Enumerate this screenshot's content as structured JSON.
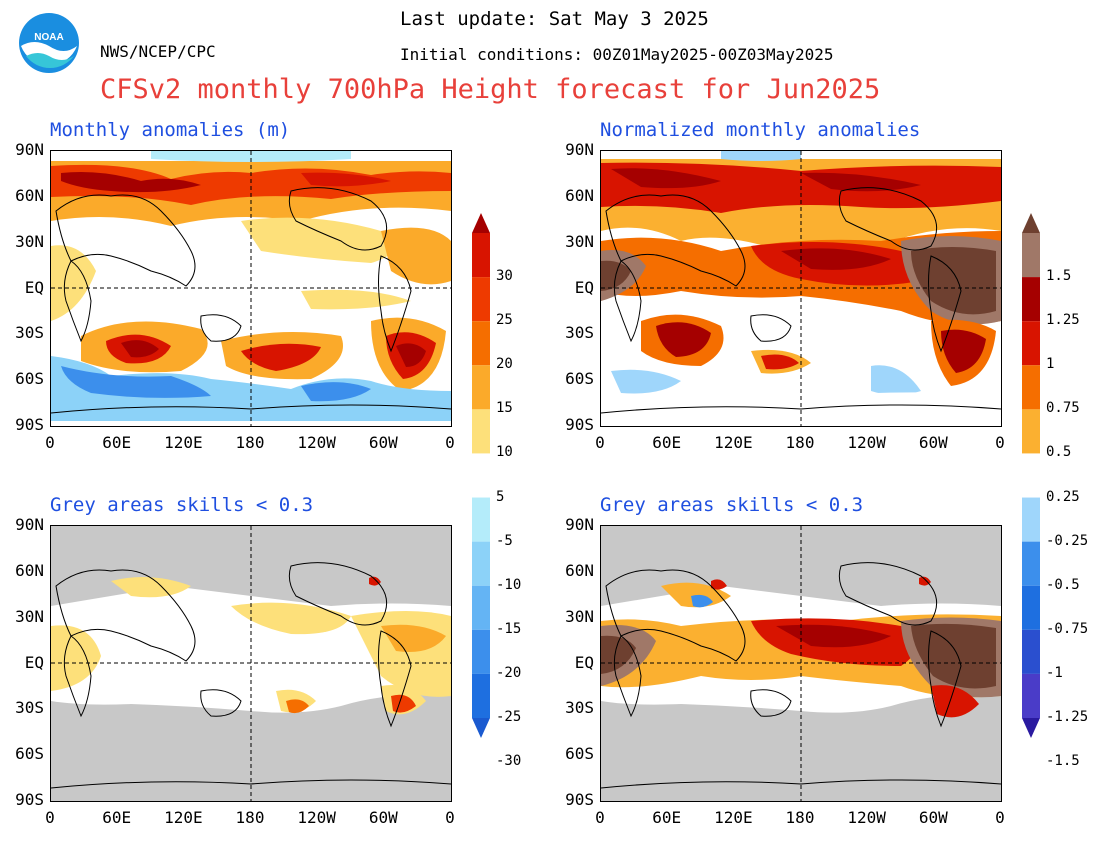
{
  "header": {
    "org": "NWS/NCEP/CPC",
    "last_update": "Last update: Sat May 3 2025",
    "initial_conditions": "Initial conditions: 00Z01May2025-00Z03May2025",
    "title": "CFSv2 monthly 700hPa Height forecast for Jun2025",
    "logo_text": "NOAA"
  },
  "panels": [
    {
      "id": "tl",
      "subtitle": "Monthly anomalies (m)"
    },
    {
      "id": "tr",
      "subtitle": "Normalized monthly anomalies"
    },
    {
      "id": "bl",
      "subtitle": "Grey areas skills < 0.3"
    },
    {
      "id": "br",
      "subtitle": "Grey areas skills < 0.3"
    }
  ],
  "axes": {
    "lat_labels": [
      "90N",
      "60N",
      "30N",
      "EQ",
      "30S",
      "60S",
      "90S"
    ],
    "lon_labels": [
      "0",
      "60E",
      "120E",
      "180",
      "120W",
      "60W",
      "0"
    ]
  },
  "colorbar_left": {
    "labels": [
      "30",
      "25",
      "20",
      "15",
      "10",
      "5",
      "-5",
      "-10",
      "-15",
      "-20",
      "-25",
      "-30"
    ],
    "colors": [
      "#a50000",
      "#d81400",
      "#ee3a00",
      "#f56e00",
      "#fbaa2a",
      "#fde07a",
      "#ffffff",
      "#b4ecfa",
      "#8cd2f8",
      "#64b4f4",
      "#3c8fec",
      "#1e6fe0",
      "#1a5ad0"
    ]
  },
  "colorbar_right": {
    "labels": [
      "1.5",
      "1.25",
      "1",
      "0.75",
      "0.5",
      "0.25",
      "-0.25",
      "-0.5",
      "-0.75",
      "-1",
      "-1.25",
      "-1.5"
    ],
    "colors": [
      "#6e4030",
      "#a07868",
      "#a50000",
      "#d81400",
      "#f56e00",
      "#fbb030",
      "#ffffff",
      "#9fd6fb",
      "#3c8fec",
      "#1e6fe0",
      "#2a4fcf",
      "#4a3cc8",
      "#2a1aa0"
    ]
  },
  "colors": {
    "title": "#e8403a",
    "subtitle": "#1f4fe0",
    "grey_mask": "#c8c8c8"
  }
}
